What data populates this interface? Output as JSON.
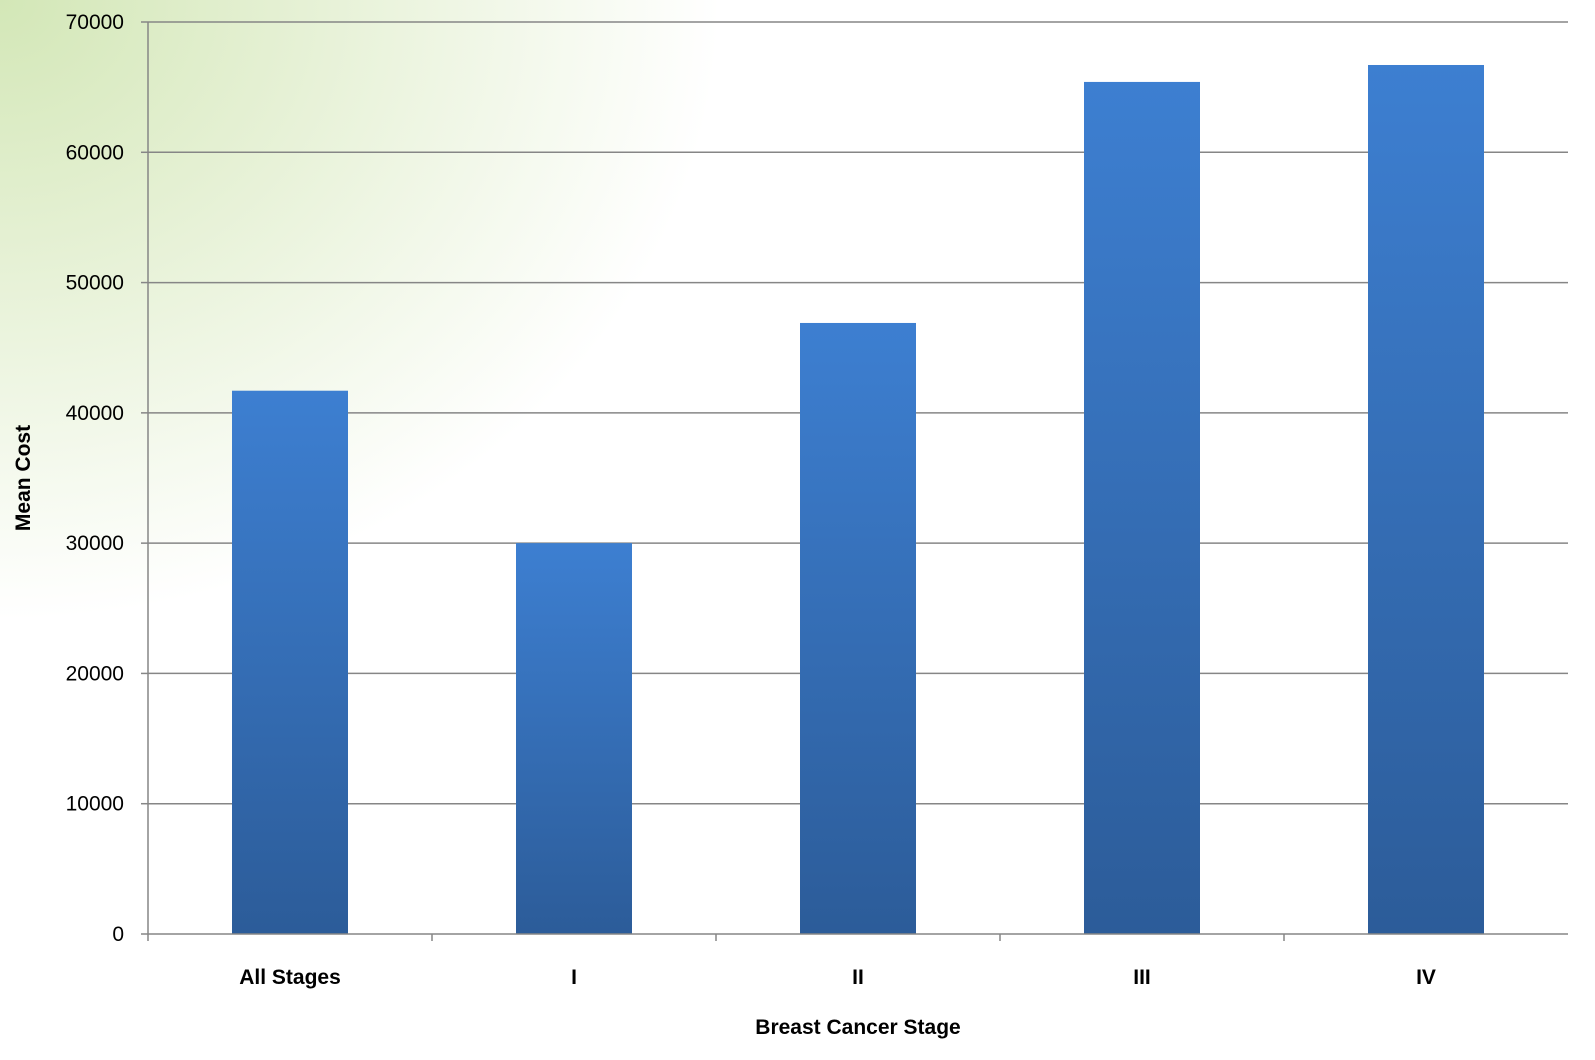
{
  "chart_data": {
    "type": "bar",
    "categories": [
      "All Stages",
      "I",
      "II",
      "III",
      "IV"
    ],
    "values": [
      41700,
      30000,
      46900,
      65400,
      66700
    ],
    "xlabel": "Breast Cancer Stage",
    "ylabel": "Mean Cost",
    "ylim": [
      0,
      70000
    ],
    "yticks": [
      0,
      10000,
      20000,
      30000,
      40000,
      50000,
      60000,
      70000
    ],
    "grid": true,
    "legend": "none",
    "colors": {
      "bar_top": "#3d7fd1",
      "bar_bottom": "#2c5c99",
      "grid": "#868686"
    }
  }
}
